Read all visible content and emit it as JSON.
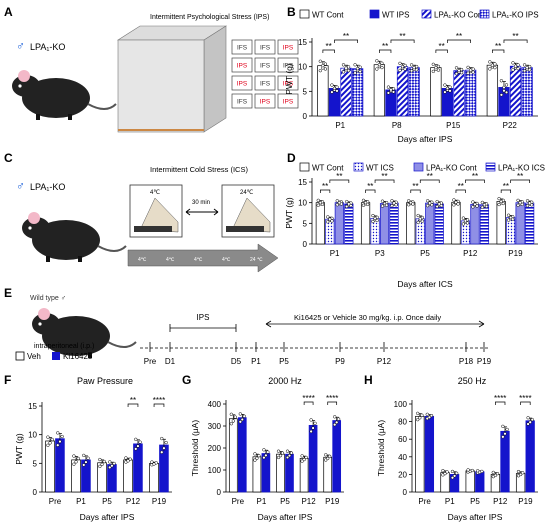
{
  "colors": {
    "blue": "#1414cc",
    "light": "#8f8fe6",
    "white": "#ffffff",
    "axis": "#000000",
    "red": "#e0001a"
  },
  "panels": {
    "A": {
      "letter": "A",
      "strain": "LPA₁-KO",
      "title": "Intermittent Psychological Stress (IPS)",
      "cells": [
        "IFS",
        "IFS",
        "IPS",
        "IPS",
        "IFS",
        "IFS",
        "IPS",
        "IFS",
        "IPS",
        "IFS",
        "IPS",
        "IPS"
      ]
    },
    "C": {
      "letter": "C",
      "strain": "LPA₁-KO",
      "title": "Intermittent Cold Stress (ICS)",
      "temp_low": "4℃",
      "temp_high": "24℃",
      "interval": "30 min",
      "arrow_labels": [
        "4℃",
        "4℃",
        "4℃",
        "4℃",
        "24 ℃"
      ]
    },
    "E": {
      "letter": "E",
      "strain": "Wild type ♂",
      "route": "intraperitoneal (i.p.)",
      "legend": [
        "Veh",
        "Ki16425"
      ],
      "ips_label": "IPS",
      "drug_label": "Ki16425 or Vehicle  30 mg/kg. i.p. Once daily",
      "timeline": [
        "Pre",
        "D1",
        "D5",
        "P1",
        "P5",
        "P9",
        "P12",
        "P18",
        "P19"
      ]
    }
  },
  "chart_data": [
    {
      "id": "B",
      "letter": "B",
      "type": "bar",
      "ylabel": "PWT (g)",
      "xlabel": "Days after IPS",
      "ylim": [
        0,
        15
      ],
      "yticks": [
        0,
        5,
        10,
        15
      ],
      "legend": [
        "WT Cont",
        "WT IPS",
        "LPA₁-KO Cont",
        "LPA₁-KO IPS"
      ],
      "categories": [
        "P1",
        "P8",
        "P15",
        "P22"
      ],
      "series": [
        {
          "name": "WT Cont",
          "style": "white",
          "values": [
            10.2,
            10.4,
            9.8,
            10.3
          ],
          "errors": [
            0.8,
            0.7,
            0.6,
            0.6
          ]
        },
        {
          "name": "WT IPS",
          "style": "blue",
          "values": [
            5.6,
            5.3,
            5.6,
            5.8
          ],
          "errors": [
            0.6,
            0.5,
            0.6,
            1.2
          ]
        },
        {
          "name": "LPA₁-KO Cont",
          "style": "hatch",
          "values": [
            9.7,
            10.0,
            9.2,
            10.1
          ],
          "errors": [
            0.6,
            0.6,
            0.5,
            0.6
          ]
        },
        {
          "name": "LPA₁-KO IPS",
          "style": "check",
          "values": [
            9.6,
            9.8,
            9.3,
            9.8
          ],
          "errors": [
            0.7,
            0.5,
            0.5,
            0.5
          ]
        }
      ],
      "sig": [
        "**",
        "**",
        "**",
        "**",
        "**",
        "**",
        "**",
        "**"
      ]
    },
    {
      "id": "D",
      "letter": "D",
      "type": "bar",
      "ylabel": "PWT (g)",
      "xlabel": "Days after ICS",
      "ylim": [
        0,
        15
      ],
      "yticks": [
        0,
        5,
        10,
        15
      ],
      "legend": [
        "WT Cont",
        "WT ICS",
        "LPA₁-KO Cont",
        "LPA₁-KO ICS"
      ],
      "categories": [
        "P1",
        "P3",
        "P5",
        "P12",
        "P19"
      ],
      "series": [
        {
          "name": "WT Cont",
          "style": "white",
          "values": [
            10.0,
            10.0,
            10.0,
            10.1,
            10.3
          ],
          "errors": [
            0.5,
            0.5,
            0.4,
            0.5,
            0.6
          ]
        },
        {
          "name": "WT ICS",
          "style": "dots",
          "values": [
            6.0,
            6.2,
            6.1,
            5.6,
            6.4
          ],
          "errors": [
            0.5,
            0.6,
            0.7,
            0.6,
            0.5
          ]
        },
        {
          "name": "LPA₁-KO Cont",
          "style": "light",
          "values": [
            10.0,
            9.8,
            9.9,
            9.6,
            10.0
          ],
          "errors": [
            0.4,
            0.5,
            0.5,
            0.5,
            0.5
          ]
        },
        {
          "name": "LPA₁-KO ICS",
          "style": "hstripe",
          "values": [
            9.7,
            9.9,
            9.7,
            9.5,
            9.9
          ],
          "errors": [
            0.5,
            0.5,
            0.5,
            0.5,
            0.5
          ]
        }
      ],
      "sig": [
        "**",
        "**",
        "**",
        "**",
        "**",
        "**",
        "**",
        "**",
        "**",
        "**"
      ]
    },
    {
      "id": "F",
      "letter": "F",
      "type": "bar",
      "title": "Paw Pressure",
      "ylabel": "PWT (g)",
      "xlabel": "Days after IPS",
      "ylim": [
        0,
        15
      ],
      "yticks": [
        0,
        5,
        10,
        15
      ],
      "categories": [
        "Pre",
        "P1",
        "P5",
        "P12",
        "P19"
      ],
      "series": [
        {
          "name": "Veh",
          "style": "white",
          "values": [
            8.9,
            5.6,
            5.1,
            5.6,
            5.0
          ],
          "errors": [
            0.6,
            0.6,
            0.5,
            0.3,
            0.2
          ]
        },
        {
          "name": "Ki16425",
          "style": "blue",
          "values": [
            9.3,
            5.6,
            4.8,
            8.4,
            8.2
          ],
          "errors": [
            0.9,
            0.7,
            0.4,
            0.7,
            1.0
          ]
        }
      ],
      "sig": [
        "**",
        "****"
      ]
    },
    {
      "id": "G",
      "letter": "G",
      "type": "bar",
      "title": "2000 Hz",
      "ylabel": "Threshold (μA)",
      "xlabel": "Days after IPS",
      "ylim": [
        0,
        400
      ],
      "yticks": [
        0,
        100,
        200,
        300,
        400
      ],
      "categories": [
        "Pre",
        "P1",
        "P5",
        "P12",
        "P19"
      ],
      "series": [
        {
          "name": "Veh",
          "style": "white",
          "values": [
            333,
            160,
            172,
            153,
            158
          ],
          "errors": [
            18,
            12,
            12,
            10,
            10
          ]
        },
        {
          "name": "Ki16425",
          "style": "blue",
          "values": [
            338,
            175,
            172,
            303,
            325
          ],
          "errors": [
            15,
            15,
            12,
            22,
            15
          ]
        }
      ],
      "sig": [
        "****",
        "****"
      ]
    },
    {
      "id": "H",
      "letter": "H",
      "type": "bar",
      "title": "250 Hz",
      "ylabel": "Threshold (μA)",
      "xlabel": "Days after IPS",
      "ylim": [
        0,
        100
      ],
      "yticks": [
        0,
        20,
        40,
        60,
        80,
        100
      ],
      "categories": [
        "Pre",
        "P1",
        "P5",
        "P12",
        "P19"
      ],
      "series": [
        {
          "name": "Veh",
          "style": "white",
          "values": [
            86,
            22,
            24,
            20,
            21
          ],
          "errors": [
            3,
            2,
            1,
            2,
            2
          ]
        },
        {
          "name": "Ki16425",
          "style": "blue",
          "values": [
            86,
            20,
            23,
            69,
            81
          ],
          "errors": [
            2,
            3,
            1,
            5,
            3
          ]
        }
      ],
      "sig": [
        "****",
        "****"
      ]
    }
  ]
}
